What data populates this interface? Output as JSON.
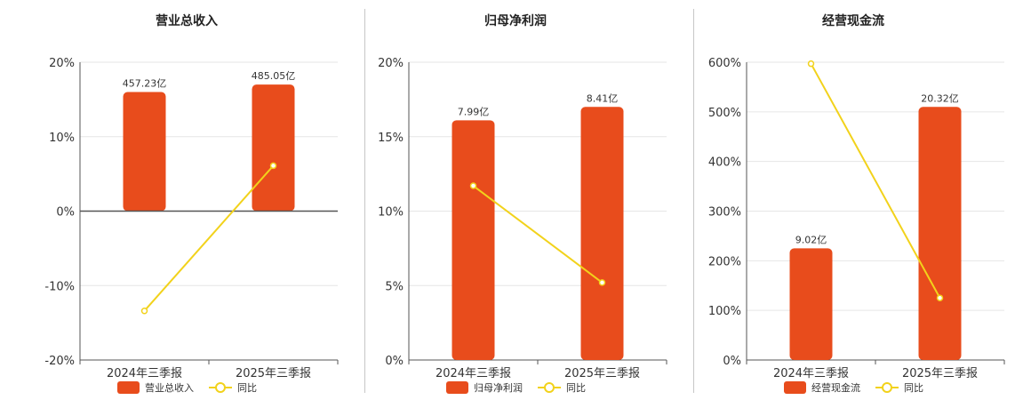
{
  "colors": {
    "bar": "#E84C1C",
    "line": "#F2D21B",
    "grid": "#E6E6E6",
    "axis": "#555555",
    "divider": "#C7C7C7"
  },
  "legend": {
    "line_name": "同比"
  },
  "chart_data": [
    {
      "type": "bar",
      "title": "营业总收入",
      "categories": [
        "2024年三季报",
        "2025年三季报"
      ],
      "ylim": [
        -20,
        20
      ],
      "yticks": [
        -20,
        -10,
        0,
        10,
        20
      ],
      "ytick_labels": [
        "-20%",
        "-10%",
        "0%",
        "10%",
        "20%"
      ],
      "series": [
        {
          "name": "营业总收入",
          "kind": "bar",
          "values": [
            16.0,
            17.0
          ],
          "labels": [
            "457.23亿",
            "485.05亿"
          ]
        },
        {
          "name": "同比",
          "kind": "line",
          "values": [
            -13.4,
            6.1
          ]
        }
      ],
      "grid": true,
      "legend_position": "bottom"
    },
    {
      "type": "bar",
      "title": "归母净利润",
      "categories": [
        "2024年三季报",
        "2025年三季报"
      ],
      "ylim": [
        0,
        20
      ],
      "yticks": [
        0,
        5,
        10,
        15,
        20
      ],
      "ytick_labels": [
        "0%",
        "5%",
        "10%",
        "15%",
        "20%"
      ],
      "series": [
        {
          "name": "归母净利润",
          "kind": "bar",
          "values": [
            16.1,
            17.0
          ],
          "labels": [
            "7.99亿",
            "8.41亿"
          ]
        },
        {
          "name": "同比",
          "kind": "line",
          "values": [
            11.7,
            5.2
          ]
        }
      ],
      "grid": true,
      "legend_position": "bottom"
    },
    {
      "type": "bar",
      "title": "经营现金流",
      "categories": [
        "2024年三季报",
        "2025年三季报"
      ],
      "ylim": [
        0,
        600
      ],
      "yticks": [
        0,
        100,
        200,
        300,
        400,
        500,
        600
      ],
      "ytick_labels": [
        "0%",
        "100%",
        "200%",
        "300%",
        "400%",
        "500%",
        "600%"
      ],
      "series": [
        {
          "name": "经营现金流",
          "kind": "bar",
          "values": [
            225,
            510
          ],
          "labels": [
            "9.02亿",
            "20.32亿"
          ]
        },
        {
          "name": "同比",
          "kind": "line",
          "values": [
            597,
            125
          ]
        }
      ],
      "grid": true,
      "legend_position": "bottom"
    }
  ]
}
